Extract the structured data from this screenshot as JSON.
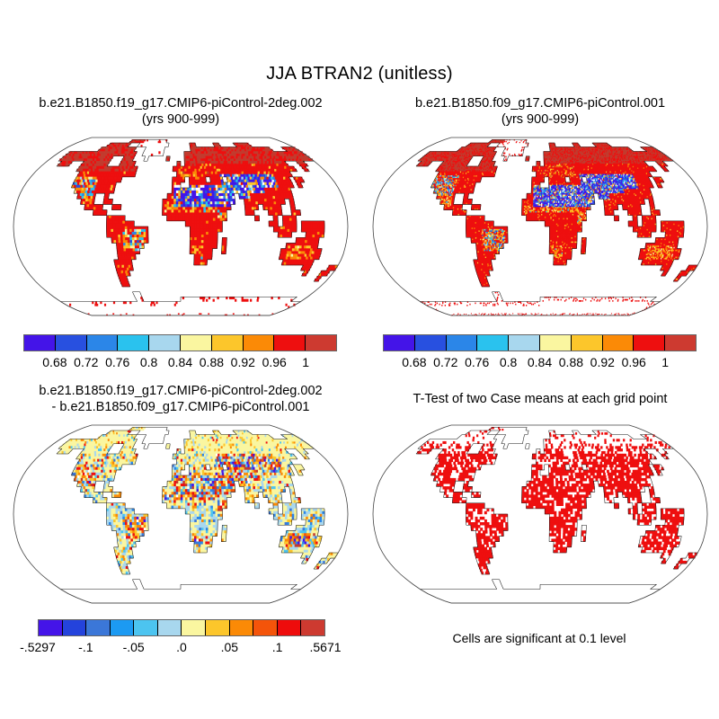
{
  "page_title": "JJA BTRAN2 (unitless)",
  "panels": {
    "a": {
      "title": "b.e21.B1850.f19_g17.CMIP6-piControl-2deg.002",
      "subtitle": "(yrs 900-999)"
    },
    "b": {
      "title": "b.e21.B1850.f09_g17.CMIP6-piControl.001",
      "subtitle": "(yrs 900-999)"
    },
    "c": {
      "title": "b.e21.B1850.f19_g17.CMIP6-piControl-2deg.002",
      "subtitle": "- b.e21.B1850.f09_g17.CMIP6-piControl.001"
    },
    "d": {
      "title": "T-Test of two Case means at each grid point",
      "caption": "Cells are significant at 0.1 level"
    }
  },
  "colorbars": {
    "value": {
      "colors": [
        "#4414E8",
        "#2850E0",
        "#2B86E8",
        "#2AC2EE",
        "#A8D7EE",
        "#FAF6A0",
        "#FCC62B",
        "#FB8A06",
        "#EE0F0F",
        "#CD3A30"
      ],
      "ticks": [
        "0.68",
        "0.72",
        "0.76",
        "0.8",
        "0.84",
        "0.88",
        "0.92",
        "0.96",
        "1"
      ],
      "tick_pos": [
        0.1,
        0.2,
        0.3,
        0.4,
        0.5,
        0.6,
        0.7,
        0.8,
        0.9
      ]
    },
    "diff": {
      "colors": [
        "#4414E8",
        "#2443DC",
        "#3B77D8",
        "#1C9AF2",
        "#4CC4F0",
        "#A8D7EE",
        "#FAF6A0",
        "#FCC62B",
        "#FB8A06",
        "#F4540A",
        "#EE0C0C",
        "#CD3A30"
      ],
      "ticks": [
        "-.5297",
        "-.1",
        "-.05",
        ".0",
        ".05",
        ".1",
        ".5671"
      ],
      "tick_pos": [
        0,
        0.1667,
        0.3333,
        0.5,
        0.6667,
        0.8333,
        1
      ]
    }
  },
  "chart_data": [
    {
      "type": "heatmap",
      "panel": "top-left",
      "title": "b.e21.B1850.f19_g17.CMIP6-piControl-2deg.002 (yrs 900-999)",
      "variable": "JJA BTRAN2 (unitless)",
      "projection": "Robinson world map, ~2deg grid cells, ocean white",
      "levels": [
        0.68,
        0.72,
        0.76,
        0.8,
        0.84,
        0.88,
        0.92,
        0.96,
        1
      ],
      "colors": [
        "#4414E8",
        "#2850E0",
        "#2B86E8",
        "#2AC2EE",
        "#A8D7EE",
        "#FAF6A0",
        "#FCC62B",
        "#FB8A06",
        "#EE0F0F",
        "#CD3A30"
      ],
      "pattern": "Most vegetated land near 1 (red); dark red at high northern latitudes; low values (blues, <0.76) over Sahara margin, Middle East, Central Asia, SW North America; orange/gold over Sahel, Australia interior, E Brazil; white = missing (deserts, ice sheets)"
    },
    {
      "type": "heatmap",
      "panel": "top-right",
      "title": "b.e21.B1850.f09_g17.CMIP6-piControl.001 (yrs 900-999)",
      "variable": "JJA BTRAN2 (unitless)",
      "projection": "Robinson world map, ~1deg grid cells, ocean white",
      "levels": [
        0.68,
        0.72,
        0.76,
        0.8,
        0.84,
        0.88,
        0.92,
        0.96,
        1
      ],
      "colors": [
        "#4414E8",
        "#2850E0",
        "#2B86E8",
        "#2AC2EE",
        "#A8D7EE",
        "#FAF6A0",
        "#FCC62B",
        "#FB8A06",
        "#EE0F0F",
        "#CD3A30"
      ],
      "pattern": "Same spatial pattern as top-left at finer resolution"
    },
    {
      "type": "heatmap",
      "panel": "bottom-left",
      "title": "b.e21.B1850.f19_g17.CMIP6-piControl-2deg.002 - b.e21.B1850.f09_g17.CMIP6-piControl.001",
      "variable": "JJA BTRAN2 difference (unitless)",
      "min": -0.5297,
      "max": 0.5671,
      "levels": [
        -0.5297,
        -0.1,
        -0.05,
        0,
        0.05,
        0.1,
        0.5671
      ],
      "colors": [
        "#4414E8",
        "#2443DC",
        "#3B77D8",
        "#1C9AF2",
        "#4CC4F0",
        "#A8D7EE",
        "#FAF6A0",
        "#FCC62B",
        "#FB8A06",
        "#F4540A",
        "#EE0C0C",
        "#CD3A30"
      ],
      "pattern": "Near-zero (pale yellow/light blue) over boreal and humid tropics; large scattered +/- differences (reds and blues) over arid zones: Sahara, Middle East, Central Asia, W North America, E Brazil, Australia"
    },
    {
      "type": "heatmap",
      "panel": "bottom-right",
      "title": "T-Test of two Case means at each grid point",
      "note": "Cells are significant at 0.1 level",
      "colors": [
        "#EE0F0F"
      ],
      "pattern": "Red cells where difference significant at 0.1 level: dense over Africa, South America, S/Central Asia, Australia, contiguous US; sparse over high-latitude Canada, Greenland, N Siberia; ocean and Antarctica blank"
    }
  ],
  "map": {
    "palette": {
      "dkblue": "#4414E8",
      "blue": "#2850E0",
      "medblue": "#3B77D8",
      "dodger": "#2B86E8",
      "sky": "#4CC4F0",
      "cyan": "#2AC2EE",
      "ltblue": "#A8D7EE",
      "payel": "#FAF6A0",
      "gold": "#FCC62B",
      "orange": "#FB8A06",
      "ored": "#F4540A",
      "red": "#EE0F0F",
      "brick": "#C23B2E",
      "white": "#FFFFFF",
      "coast": "#1a1a1a",
      "frame": "#444444"
    },
    "land_spans": [
      [],
      [
        [
          18,
          22,
          "L"
        ],
        [
          23,
          30,
          "G"
        ]
      ],
      [
        [
          12,
          18,
          "L"
        ],
        [
          22,
          31,
          "G"
        ],
        [
          39,
          40,
          "L"
        ],
        [
          47,
          48,
          "L"
        ],
        [
          54,
          58,
          "L"
        ]
      ],
      [
        [
          11,
          21,
          "L"
        ],
        [
          25,
          30,
          "G"
        ],
        [
          39,
          63,
          "L"
        ],
        [
          68,
          71,
          "L"
        ]
      ],
      [
        [
          3,
          22,
          "L"
        ],
        [
          25,
          30,
          "G"
        ],
        [
          37,
          71,
          "L"
        ]
      ],
      [
        [
          3,
          16,
          "L"
        ],
        [
          20,
          22,
          "L"
        ],
        [
          26,
          26,
          "G"
        ],
        [
          32,
          32,
          "L"
        ],
        [
          37,
          71,
          "L"
        ]
      ],
      [
        [
          4,
          6,
          "L"
        ],
        [
          10,
          16,
          "L"
        ],
        [
          20,
          23,
          "L"
        ],
        [
          35,
          35,
          "L"
        ],
        [
          37,
          63,
          "L"
        ],
        [
          67,
          68,
          "L"
        ]
      ],
      [
        [
          10,
          24,
          "L"
        ],
        [
          34,
          64,
          "L"
        ],
        [
          67,
          67,
          "L"
        ]
      ],
      [
        [
          11,
          24,
          "L"
        ],
        [
          35,
          62,
          "L"
        ]
      ],
      [
        [
          11,
          21,
          "L"
        ],
        [
          34,
          36,
          "L"
        ],
        [
          38,
          41,
          "L"
        ],
        [
          43,
          45,
          "L"
        ],
        [
          47,
          61,
          "L"
        ],
        [
          63,
          64,
          "L"
        ]
      ],
      [
        [
          11,
          20,
          "L"
        ],
        [
          34,
          35,
          "L"
        ],
        [
          38,
          39,
          "L"
        ],
        [
          40,
          61,
          "L"
        ],
        [
          63,
          63,
          "L"
        ]
      ],
      [
        [
          12,
          20,
          "L"
        ],
        [
          34,
          60,
          "L"
        ]
      ],
      [
        [
          13,
          16,
          "L"
        ],
        [
          19,
          19,
          "L"
        ],
        [
          33,
          47,
          "L"
        ],
        [
          49,
          60,
          "L"
        ]
      ],
      [
        [
          14,
          16,
          "L"
        ],
        [
          19,
          20,
          "L"
        ],
        [
          32,
          47,
          "L"
        ],
        [
          50,
          58,
          "L"
        ],
        [
          60,
          60,
          "L"
        ]
      ],
      [
        [
          15,
          18,
          "L"
        ],
        [
          21,
          22,
          "L"
        ],
        [
          32,
          46,
          "L"
        ],
        [
          50,
          52,
          "L"
        ],
        [
          54,
          57,
          "L"
        ],
        [
          60,
          60,
          "L"
        ]
      ],
      [
        [
          17,
          19,
          "L"
        ],
        [
          32,
          45,
          "L"
        ],
        [
          50,
          51,
          "L"
        ],
        [
          55,
          57,
          "L"
        ],
        [
          60,
          61,
          "L"
        ]
      ],
      [
        [
          20,
          23,
          "L"
        ],
        [
          33,
          45,
          "L"
        ],
        [
          52,
          52,
          "L"
        ],
        [
          56,
          56,
          "L"
        ],
        [
          58,
          60,
          "L"
        ]
      ],
      [
        [
          20,
          25,
          "L"
        ],
        [
          37,
          44,
          "L"
        ],
        [
          55,
          56,
          "L"
        ],
        [
          58,
          60,
          "L"
        ],
        [
          62,
          66,
          "L"
        ]
      ],
      [
        [
          20,
          28,
          "L"
        ],
        [
          38,
          44,
          "L"
        ],
        [
          56,
          60,
          "L"
        ],
        [
          62,
          66,
          "L"
        ]
      ],
      [
        [
          20,
          28,
          "L"
        ],
        [
          38,
          43,
          "L"
        ],
        [
          57,
          59,
          "L"
        ],
        [
          63,
          66,
          "L"
        ]
      ],
      [
        [
          21,
          28,
          "L"
        ],
        [
          38,
          43,
          "L"
        ],
        [
          45,
          45,
          "L"
        ],
        [
          61,
          65,
          "L"
        ]
      ],
      [
        [
          22,
          27,
          "L"
        ],
        [
          38,
          43,
          "L"
        ],
        [
          45,
          45,
          "L"
        ],
        [
          59,
          65,
          "L"
        ]
      ],
      [
        [
          22,
          26,
          "L"
        ],
        [
          38,
          42,
          "L"
        ],
        [
          45,
          45,
          "L"
        ],
        [
          58,
          66,
          "L"
        ]
      ],
      [
        [
          22,
          25,
          "L"
        ],
        [
          39,
          42,
          "L"
        ],
        [
          58,
          66,
          "L"
        ]
      ],
      [
        [
          21,
          24,
          "L"
        ],
        [
          39,
          41,
          "L"
        ],
        [
          59,
          65,
          "L"
        ]
      ],
      [
        [
          21,
          24,
          "L"
        ],
        [
          64,
          65,
          "L"
        ],
        [
          70,
          71,
          "L"
        ]
      ],
      [
        [
          21,
          23,
          "L"
        ],
        [
          65,
          65,
          "L"
        ],
        [
          69,
          70,
          "L"
        ]
      ],
      [
        [
          21,
          22,
          "L"
        ],
        [
          69,
          69,
          "L"
        ]
      ],
      [
        [
          21,
          22,
          "L"
        ]
      ],
      [],
      [
        [
          23,
          24,
          "G"
        ]
      ],
      [
        [
          23,
          24,
          "G"
        ],
        [
          36,
          68,
          "G"
        ]
      ],
      [
        [
          0,
          71,
          "G"
        ]
      ],
      [
        [
          0,
          71,
          "G"
        ]
      ],
      [
        [
          0,
          71,
          "G"
        ]
      ],
      [
        [
          0,
          71,
          "G"
        ]
      ]
    ]
  }
}
